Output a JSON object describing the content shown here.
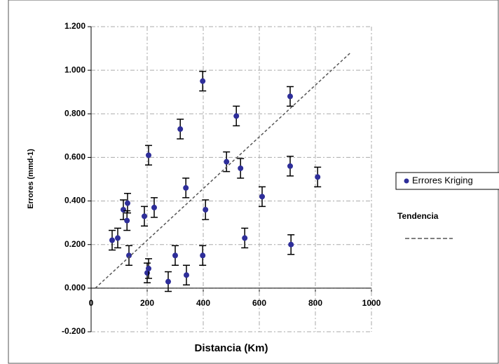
{
  "chart_data": {
    "type": "scatter",
    "xlabel": "Distancia (Km)",
    "ylabel": "Errores (mmd-1)",
    "xlim": [
      0,
      1000
    ],
    "ylim": [
      -0.2,
      1.2
    ],
    "xticks": [
      0,
      200,
      400,
      600,
      800,
      1000
    ],
    "yticks": [
      {
        "value": -0.2,
        "label": "-0.200"
      },
      {
        "value": 0,
        "label": "0.000"
      },
      {
        "value": 0.2,
        "label": "0.200"
      },
      {
        "value": 0.4,
        "label": "0.400"
      },
      {
        "value": 0.6,
        "label": "0.600"
      },
      {
        "value": 0.8,
        "label": "0.800"
      },
      {
        "value": 1.0,
        "label": "1.000"
      },
      {
        "value": 1.2,
        "label": "1.200"
      }
    ],
    "grid": true,
    "series": [
      {
        "name": "Errores Kriging",
        "color": "#2e2e9a",
        "x": [
          75,
          95,
          115,
          130,
          128,
          135,
          190,
          205,
          225,
          200,
          205,
          275,
          300,
          318,
          338,
          340,
          398,
          398,
          408,
          483,
          518,
          533,
          548,
          610,
          710,
          710,
          713,
          808
        ],
        "values": [
          0.22,
          0.23,
          0.36,
          0.39,
          0.31,
          0.15,
          0.33,
          0.61,
          0.37,
          0.07,
          0.09,
          0.03,
          0.15,
          0.73,
          0.46,
          0.06,
          0.15,
          0.95,
          0.36,
          0.58,
          0.79,
          0.55,
          0.23,
          0.42,
          0.88,
          0.56,
          0.2,
          0.51
        ],
        "errors": [
          0.045,
          0.045,
          0.045,
          0.045,
          0.045,
          0.045,
          0.045,
          0.045,
          0.045,
          0.045,
          0.045,
          0.045,
          0.045,
          0.045,
          0.045,
          0.045,
          0.045,
          0.045,
          0.045,
          0.045,
          0.045,
          0.045,
          0.045,
          0.045,
          0.045,
          0.045,
          0.045,
          0.045
        ]
      },
      {
        "name": "Tendencia",
        "color": "#555555",
        "dashed": true,
        "x": [
          15,
          925
        ],
        "values": [
          0,
          1.08
        ]
      }
    ]
  }
}
